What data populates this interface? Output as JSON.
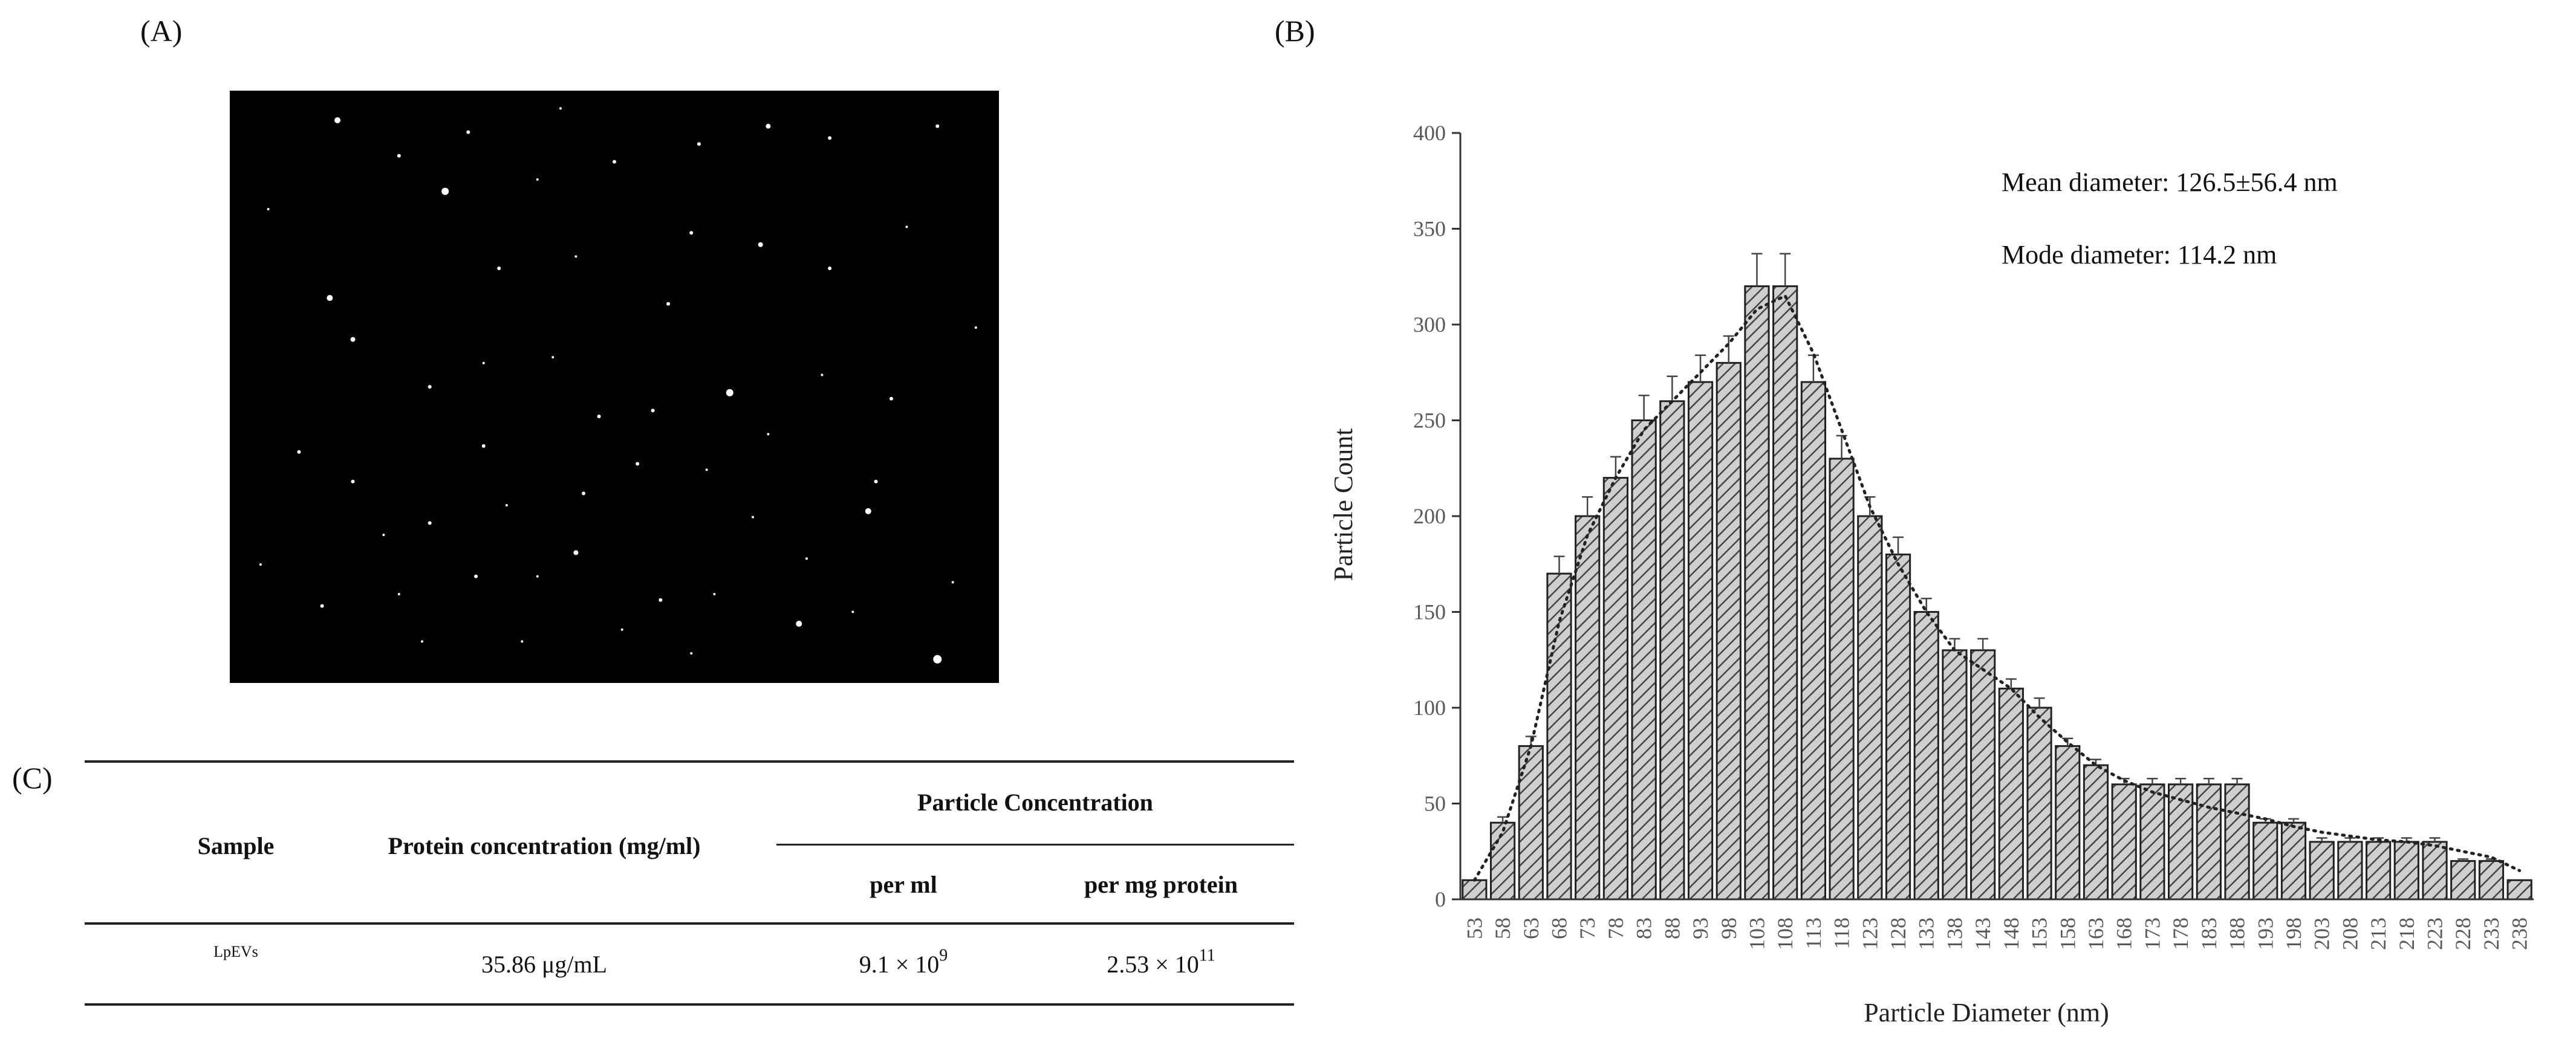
{
  "panels": {
    "a": "(A)",
    "b": "(B)",
    "c": "(C)"
  },
  "micrograph": {
    "background": "#000000",
    "particles": [
      [
        0.14,
        0.05,
        5
      ],
      [
        0.22,
        0.11,
        3
      ],
      [
        0.31,
        0.07,
        3
      ],
      [
        0.43,
        0.03,
        2
      ],
      [
        0.5,
        0.12,
        3
      ],
      [
        0.61,
        0.09,
        3
      ],
      [
        0.7,
        0.06,
        4
      ],
      [
        0.78,
        0.08,
        3
      ],
      [
        0.92,
        0.06,
        3
      ],
      [
        0.13,
        0.35,
        5
      ],
      [
        0.28,
        0.17,
        6
      ],
      [
        0.35,
        0.3,
        3
      ],
      [
        0.45,
        0.28,
        2
      ],
      [
        0.57,
        0.36,
        3
      ],
      [
        0.6,
        0.24,
        3
      ],
      [
        0.69,
        0.26,
        4
      ],
      [
        0.78,
        0.3,
        3
      ],
      [
        0.88,
        0.23,
        2
      ],
      [
        0.16,
        0.42,
        4
      ],
      [
        0.26,
        0.5,
        3
      ],
      [
        0.33,
        0.46,
        2
      ],
      [
        0.42,
        0.45,
        2
      ],
      [
        0.48,
        0.55,
        3
      ],
      [
        0.55,
        0.54,
        3
      ],
      [
        0.65,
        0.51,
        6
      ],
      [
        0.77,
        0.48,
        2
      ],
      [
        0.86,
        0.52,
        3
      ],
      [
        0.09,
        0.61,
        3
      ],
      [
        0.16,
        0.66,
        3
      ],
      [
        0.26,
        0.73,
        3
      ],
      [
        0.36,
        0.7,
        2
      ],
      [
        0.46,
        0.68,
        3
      ],
      [
        0.53,
        0.63,
        3
      ],
      [
        0.62,
        0.64,
        2
      ],
      [
        0.7,
        0.58,
        2
      ],
      [
        0.84,
        0.66,
        3
      ],
      [
        0.2,
        0.75,
        2
      ],
      [
        0.32,
        0.82,
        3
      ],
      [
        0.4,
        0.82,
        2
      ],
      [
        0.45,
        0.78,
        4
      ],
      [
        0.56,
        0.86,
        3
      ],
      [
        0.63,
        0.85,
        2
      ],
      [
        0.75,
        0.79,
        2
      ],
      [
        0.83,
        0.71,
        5
      ],
      [
        0.94,
        0.83,
        2
      ],
      [
        0.12,
        0.87,
        3
      ],
      [
        0.25,
        0.93,
        2
      ],
      [
        0.38,
        0.93,
        2
      ],
      [
        0.51,
        0.91,
        2
      ],
      [
        0.6,
        0.95,
        2
      ],
      [
        0.74,
        0.9,
        5
      ],
      [
        0.92,
        0.96,
        7
      ],
      [
        0.05,
        0.2,
        2
      ],
      [
        0.97,
        0.4,
        2
      ],
      [
        0.04,
        0.8,
        2
      ],
      [
        0.68,
        0.72,
        2
      ],
      [
        0.22,
        0.85,
        2
      ],
      [
        0.33,
        0.6,
        3
      ],
      [
        0.81,
        0.88,
        2
      ],
      [
        0.4,
        0.15,
        2
      ]
    ]
  },
  "chart_data": {
    "type": "bar",
    "xlabel": "Particle Diameter (nm)",
    "ylabel": "Particle Count",
    "ylim": [
      0,
      400
    ],
    "yticks": [
      0,
      50,
      100,
      150,
      200,
      250,
      300,
      350,
      400
    ],
    "grid": false,
    "bar_pattern": "diagonal-hatch",
    "bar_fill": "#bfbfbf",
    "categories": [
      "53",
      "58",
      "63",
      "68",
      "73",
      "78",
      "83",
      "88",
      "93",
      "98",
      "103",
      "108",
      "113",
      "118",
      "123",
      "128",
      "133",
      "138",
      "143",
      "148",
      "153",
      "158",
      "163",
      "168",
      "173",
      "178",
      "183",
      "188",
      "193",
      "198",
      "203",
      "208",
      "213",
      "218",
      "223",
      "228",
      "233",
      "238"
    ],
    "values": [
      10,
      40,
      80,
      170,
      200,
      220,
      250,
      260,
      270,
      280,
      320,
      320,
      270,
      230,
      200,
      180,
      150,
      130,
      130,
      110,
      100,
      80,
      70,
      60,
      60,
      60,
      60,
      60,
      40,
      40,
      30,
      30,
      30,
      30,
      30,
      20,
      20,
      10
    ],
    "errors": [
      0,
      3,
      5,
      9,
      10,
      11,
      13,
      13,
      14,
      14,
      17,
      17,
      14,
      12,
      10,
      9,
      7,
      6,
      6,
      5,
      5,
      4,
      3,
      3,
      3,
      3,
      3,
      3,
      2,
      2,
      2,
      2,
      2,
      2,
      2,
      1,
      1,
      0
    ],
    "trendline": {
      "style": "dotted",
      "values": [
        10,
        35,
        80,
        145,
        190,
        220,
        245,
        260,
        275,
        290,
        308,
        315,
        285,
        245,
        205,
        175,
        150,
        130,
        120,
        110,
        95,
        82,
        70,
        62,
        56,
        52,
        48,
        45,
        42,
        38,
        35,
        33,
        31,
        30,
        28,
        25,
        22,
        15
      ]
    },
    "annotations": [
      "Mean diameter: 126.5±56.4 nm",
      "Mode diameter: 114.2 nm"
    ]
  },
  "table": {
    "headers": {
      "sample": "Sample",
      "protein": "Protein concentration (mg/ml)",
      "particle": "Particle Concentration",
      "per_ml": "per ml",
      "per_mg": "per mg protein"
    },
    "rows": [
      {
        "sample": "LpEVs",
        "protein": "35.86 μg/mL",
        "per_ml_base": "9.1 ×  10",
        "per_ml_exp": "9",
        "per_mg_base": "2.53 × 10",
        "per_mg_exp": "11"
      }
    ]
  }
}
